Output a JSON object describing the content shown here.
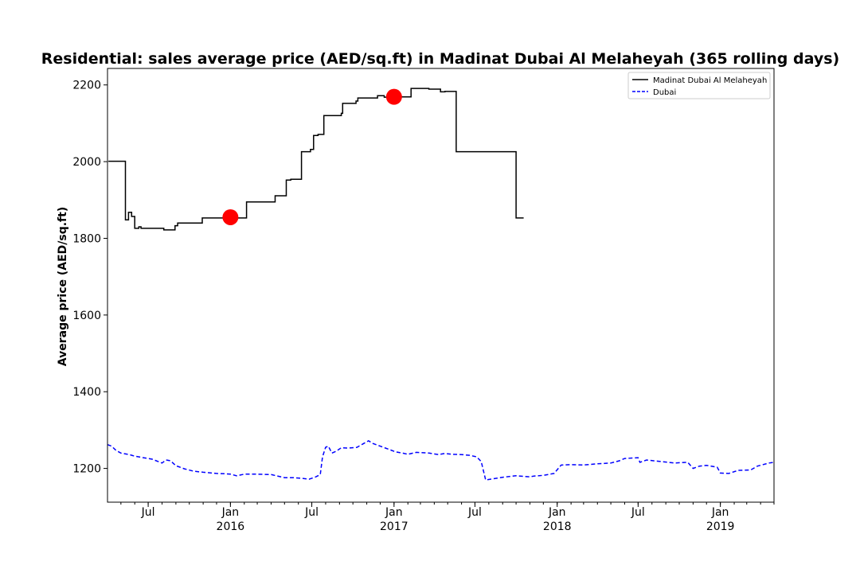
{
  "chart_data": {
    "type": "line",
    "title": "Residential: sales average price (AED/sq.ft) in Madinat Dubai Al Melaheyah (365 rolling days)",
    "xlabel": "",
    "ylabel": "Average price (AED/sq.ft)",
    "xlim": [
      "2015-04-01",
      "2019-05-01"
    ],
    "ylim": [
      1112,
      2243
    ],
    "grid": false,
    "legend_position": "top-right",
    "y_ticks": [
      1200,
      1400,
      1600,
      1800,
      2000,
      2200
    ],
    "x_ticks": [
      {
        "date": "2015-07-01",
        "label": "Jul",
        "sub": ""
      },
      {
        "date": "2016-01-01",
        "label": "Jan",
        "sub": "2016"
      },
      {
        "date": "2016-07-01",
        "label": "Jul",
        "sub": ""
      },
      {
        "date": "2017-01-01",
        "label": "Jan",
        "sub": "2017"
      },
      {
        "date": "2017-07-01",
        "label": "Jul",
        "sub": ""
      },
      {
        "date": "2018-01-01",
        "label": "Jan",
        "sub": "2018"
      },
      {
        "date": "2018-07-01",
        "label": "Jul",
        "sub": ""
      },
      {
        "date": "2019-01-01",
        "label": "Jan",
        "sub": "2019"
      }
    ],
    "series": [
      {
        "name": "Madinat Dubai Al Melaheyah",
        "color": "#000000",
        "style": "solid",
        "step": true,
        "points": [
          [
            "2015-04-03",
            2001
          ],
          [
            "2015-05-11",
            1848
          ],
          [
            "2015-05-18",
            1868
          ],
          [
            "2015-05-25",
            1857
          ],
          [
            "2015-06-01",
            1826
          ],
          [
            "2015-06-10",
            1830
          ],
          [
            "2015-06-15",
            1826
          ],
          [
            "2015-08-05",
            1822
          ],
          [
            "2015-08-30",
            1833
          ],
          [
            "2015-09-05",
            1840
          ],
          [
            "2015-10-30",
            1853
          ],
          [
            "2016-02-06",
            1895
          ],
          [
            "2016-04-10",
            1911
          ],
          [
            "2016-05-05",
            1952
          ],
          [
            "2016-05-15",
            1954
          ],
          [
            "2016-06-08",
            2026
          ],
          [
            "2016-06-28",
            2032
          ],
          [
            "2016-07-05",
            2068
          ],
          [
            "2016-07-15",
            2071
          ],
          [
            "2016-07-28",
            2120
          ],
          [
            "2016-09-05",
            2126
          ],
          [
            "2016-09-08",
            2152
          ],
          [
            "2016-10-08",
            2158
          ],
          [
            "2016-10-12",
            2166
          ],
          [
            "2016-11-25",
            2172
          ],
          [
            "2016-12-10",
            2168
          ],
          [
            "2017-01-15",
            2169
          ],
          [
            "2017-02-08",
            2191
          ],
          [
            "2017-03-20",
            2189
          ],
          [
            "2017-04-15",
            2182
          ],
          [
            "2017-04-25",
            2183
          ],
          [
            "2017-05-20",
            2026
          ],
          [
            "2017-10-01",
            1853
          ],
          [
            "2017-10-18",
            1853
          ]
        ]
      },
      {
        "name": "Dubai",
        "color": "#0000ff",
        "style": "dashed",
        "step": false,
        "points": [
          [
            "2015-04-01",
            1262
          ],
          [
            "2015-04-10",
            1258
          ],
          [
            "2015-04-20",
            1247
          ],
          [
            "2015-05-01",
            1240
          ],
          [
            "2015-05-20",
            1236
          ],
          [
            "2015-06-01",
            1232
          ],
          [
            "2015-06-20",
            1228
          ],
          [
            "2015-07-10",
            1224
          ],
          [
            "2015-08-01",
            1214
          ],
          [
            "2015-08-10",
            1222
          ],
          [
            "2015-08-20",
            1220
          ],
          [
            "2015-09-01",
            1207
          ],
          [
            "2015-09-20",
            1199
          ],
          [
            "2015-10-10",
            1193
          ],
          [
            "2015-11-01",
            1190
          ],
          [
            "2015-12-01",
            1187
          ],
          [
            "2015-12-20",
            1186
          ],
          [
            "2016-01-01",
            1185
          ],
          [
            "2016-01-15",
            1181
          ],
          [
            "2016-02-01",
            1185
          ],
          [
            "2016-03-01",
            1185
          ],
          [
            "2016-04-01",
            1184
          ],
          [
            "2016-05-01",
            1176
          ],
          [
            "2016-05-20",
            1176
          ],
          [
            "2016-06-10",
            1174
          ],
          [
            "2016-06-25",
            1172
          ],
          [
            "2016-07-10",
            1178
          ],
          [
            "2016-07-20",
            1184
          ],
          [
            "2016-07-25",
            1230
          ],
          [
            "2016-08-01",
            1255
          ],
          [
            "2016-08-07",
            1258
          ],
          [
            "2016-08-15",
            1240
          ],
          [
            "2016-08-25",
            1245
          ],
          [
            "2016-09-05",
            1254
          ],
          [
            "2016-09-20",
            1253
          ],
          [
            "2016-10-10",
            1255
          ],
          [
            "2016-10-25",
            1265
          ],
          [
            "2016-11-05",
            1272
          ],
          [
            "2016-11-15",
            1265
          ],
          [
            "2016-12-01",
            1258
          ],
          [
            "2016-12-20",
            1250
          ],
          [
            "2017-01-05",
            1243
          ],
          [
            "2017-01-20",
            1240
          ],
          [
            "2017-02-01",
            1237
          ],
          [
            "2017-02-20",
            1242
          ],
          [
            "2017-03-20",
            1240
          ],
          [
            "2017-04-10",
            1236
          ],
          [
            "2017-04-25",
            1239
          ],
          [
            "2017-05-10",
            1237
          ],
          [
            "2017-06-01",
            1236
          ],
          [
            "2017-06-20",
            1234
          ],
          [
            "2017-07-05",
            1230
          ],
          [
            "2017-07-15",
            1218
          ],
          [
            "2017-07-25",
            1170
          ],
          [
            "2017-08-05",
            1172
          ],
          [
            "2017-09-01",
            1177
          ],
          [
            "2017-10-01",
            1181
          ],
          [
            "2017-11-01",
            1178
          ],
          [
            "2017-11-10",
            1180
          ],
          [
            "2017-12-01",
            1182
          ],
          [
            "2017-12-25",
            1187
          ],
          [
            "2018-01-10",
            1209
          ],
          [
            "2018-02-01",
            1210
          ],
          [
            "2018-03-01",
            1209
          ],
          [
            "2018-04-01",
            1212
          ],
          [
            "2018-05-01",
            1214
          ],
          [
            "2018-05-20",
            1220
          ],
          [
            "2018-06-01",
            1226
          ],
          [
            "2018-07-01",
            1228
          ],
          [
            "2018-07-05",
            1216
          ],
          [
            "2018-07-20",
            1222
          ],
          [
            "2018-08-20",
            1218
          ],
          [
            "2018-09-20",
            1214
          ],
          [
            "2018-10-20",
            1216
          ],
          [
            "2018-11-01",
            1200
          ],
          [
            "2018-11-15",
            1206
          ],
          [
            "2018-12-01",
            1208
          ],
          [
            "2018-12-25",
            1203
          ],
          [
            "2019-01-01",
            1188
          ],
          [
            "2019-01-20",
            1187
          ],
          [
            "2019-02-10",
            1195
          ],
          [
            "2019-03-10",
            1196
          ],
          [
            "2019-03-25",
            1206
          ],
          [
            "2019-04-20",
            1214
          ],
          [
            "2019-05-01",
            1216
          ]
        ]
      }
    ],
    "markers": [
      {
        "x": "2016-01-01",
        "y": 1855,
        "color": "#ff0000"
      },
      {
        "x": "2017-01-01",
        "y": 2169,
        "color": "#ff0000"
      }
    ]
  }
}
